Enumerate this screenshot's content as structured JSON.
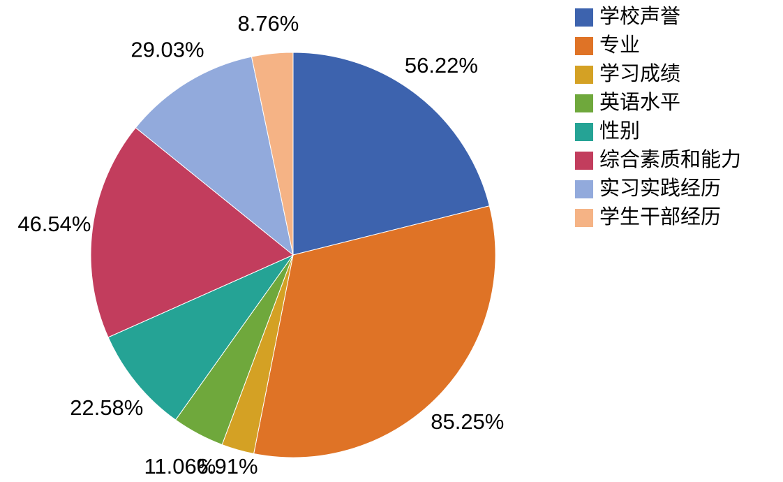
{
  "chart_data": {
    "type": "pie",
    "title": "",
    "legend_position": "right",
    "grid": false,
    "background_color": "#ffffff",
    "text_color": "#000000",
    "direction": "clockwise",
    "start_angle_deg": 0,
    "categories": [
      "学校声誉",
      "专业",
      "学习成绩",
      "英语水平",
      "性别",
      "综合素质和能力",
      "实习实践经历",
      "学生干部经历"
    ],
    "values": [
      56.22,
      85.25,
      6.91,
      11.06,
      22.58,
      46.54,
      29.03,
      8.76
    ],
    "value_labels": [
      "56.22%",
      "85.25%",
      "6.91%",
      "11.06%",
      "22.58%",
      "46.54%",
      "29.03%",
      "8.76%"
    ],
    "colors": [
      "#3d63ae",
      "#df7326",
      "#d4a124",
      "#6fa83c",
      "#25a395",
      "#c23d5d",
      "#92aadc",
      "#f5b385"
    ]
  }
}
